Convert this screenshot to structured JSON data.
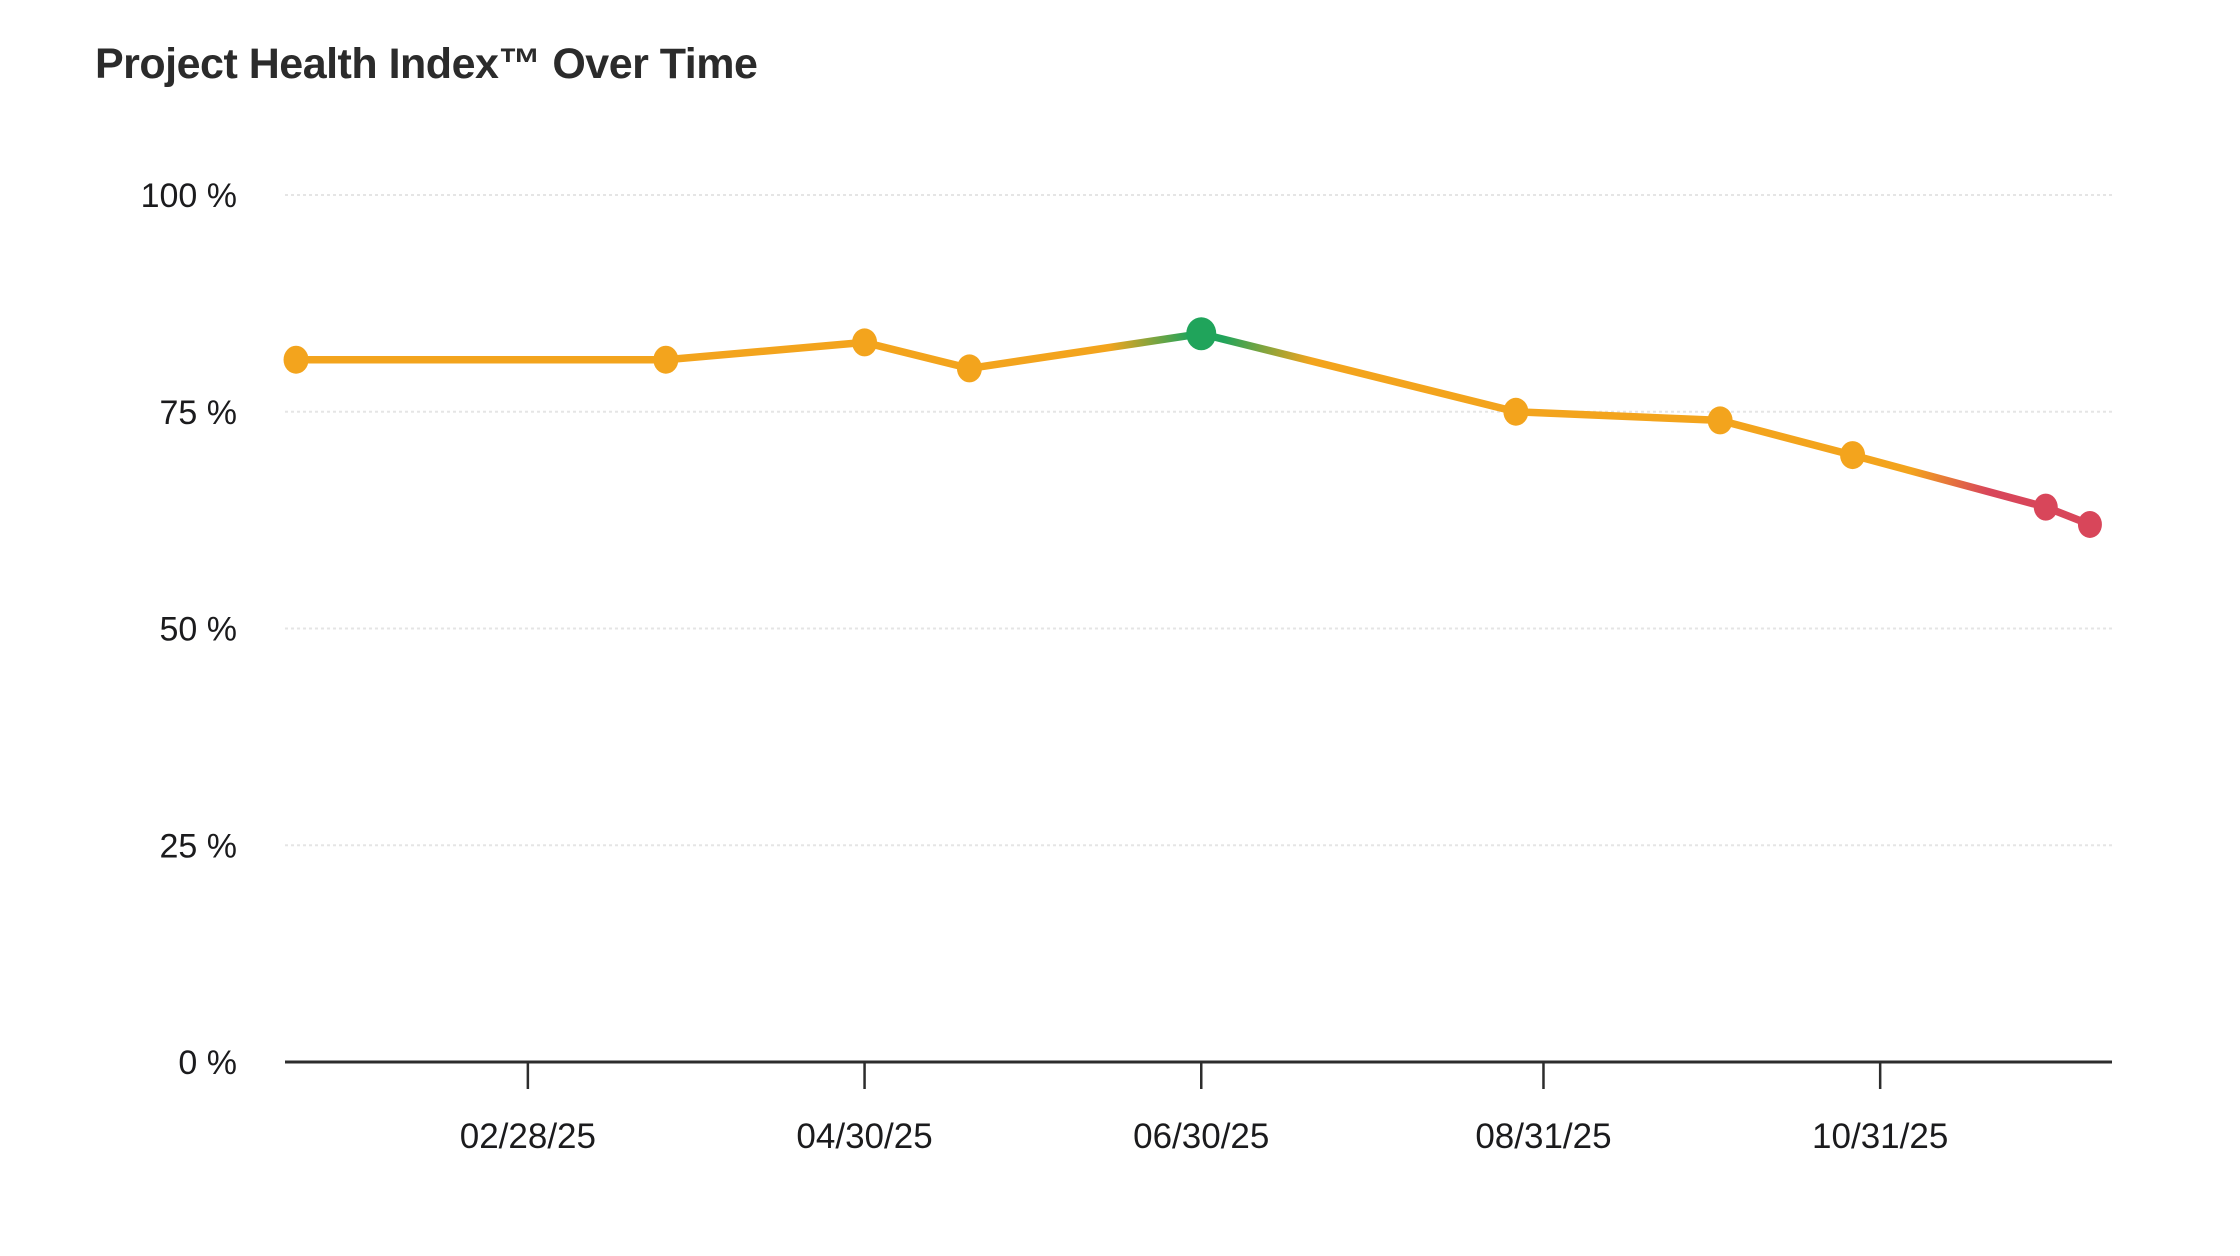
{
  "chart_data": {
    "type": "line",
    "title": "Project Health Index™ Over Time",
    "xlabel": "",
    "ylabel": "",
    "x": [
      "01/17/25",
      "03/25/25",
      "04/30/25",
      "05/19/25",
      "06/30/25",
      "08/26/25",
      "10/02/25",
      "10/26/25",
      "11/30/25",
      "12/08/25"
    ],
    "series": [
      {
        "name": "Project Health Index",
        "values": [
          81,
          81,
          83,
          80,
          84,
          75,
          74,
          70,
          64,
          62
        ],
        "point_status": [
          "amber",
          "amber",
          "amber",
          "amber",
          "green",
          "amber",
          "amber",
          "amber",
          "red",
          "red"
        ]
      }
    ],
    "ylim": [
      0,
      100
    ],
    "y_tick_values": [
      0,
      25,
      50,
      75,
      100
    ],
    "y_ticks": [
      "0 %",
      "25 %",
      "50 %",
      "75 %",
      "100 %"
    ],
    "x_tick_labels": [
      "02/28/25",
      "04/30/25",
      "06/30/25",
      "08/31/25",
      "10/31/25"
    ],
    "x_domain": [
      "01/15/25",
      "12/12/25"
    ],
    "grid": "horizontal-dotted",
    "legend": "none",
    "colors": {
      "amber": "#F3A41D",
      "green": "#20A45B",
      "red": "#D8465A",
      "grid": "#E5E5E5",
      "axis": "#2D2D2D",
      "label": "#1B1B1D",
      "title": "#2B2B2B",
      "background": "#FFFFFF"
    }
  }
}
